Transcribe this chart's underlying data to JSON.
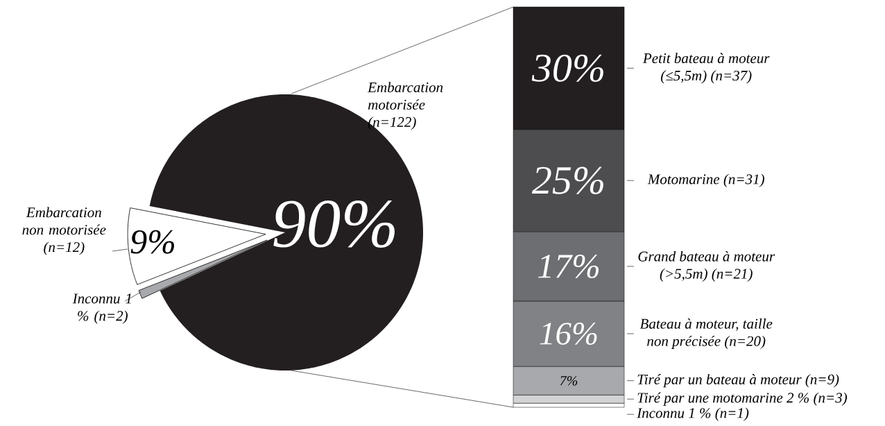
{
  "chart_data": [
    {
      "type": "pie",
      "categories": [
        "Embarcation motorisée (n=122)",
        "Embarcation non motorisée (n=12)",
        "Inconnu 1 % (n=2)"
      ],
      "values": [
        90,
        9,
        1
      ],
      "colors": [
        "#231f20",
        "#ffffff",
        "#a7a9ac"
      ],
      "value_labels": [
        "90%",
        "9%",
        null
      ]
    },
    {
      "type": "bar",
      "stacked": true,
      "legend": "right",
      "categories": [
        null
      ],
      "series": [
        {
          "name": "Inconnu 1 % (n=1)",
          "color": "#ffffff",
          "values": [
            1
          ],
          "value_labels": [
            null
          ]
        },
        {
          "name": "Tiré par une motomarine 2 % (n=3)",
          "color": "#d1d3d4",
          "values": [
            2
          ],
          "value_labels": [
            null
          ]
        },
        {
          "name": "Tiré par un bateau à moteur (n=9)",
          "color": "#a7a9ac",
          "values": [
            7
          ],
          "value_labels": [
            "7%"
          ]
        },
        {
          "name": "Bateau à moteur, taille non précisée (n=20)",
          "color": "#808285",
          "values": [
            16
          ],
          "value_labels": [
            "16%"
          ]
        },
        {
          "name": "Grand bateau à moteur (>5,5m) (n=21)",
          "color": "#6d6e71",
          "values": [
            17
          ],
          "value_labels": [
            "17%"
          ]
        },
        {
          "name": "Motomarine (n=31)",
          "color": "#4d4d4f",
          "values": [
            25
          ],
          "value_labels": [
            "25%"
          ]
        },
        {
          "name": "Petit bateau à moteur (≤5,5m) (n=37)",
          "color": "#231f20",
          "values": [
            30
          ],
          "value_labels": [
            "30%"
          ]
        }
      ]
    }
  ]
}
